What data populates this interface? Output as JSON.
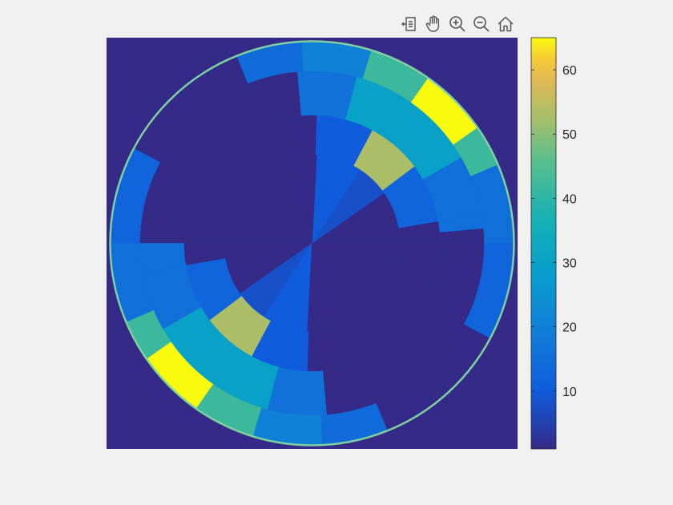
{
  "toolbar": {
    "buttons": [
      {
        "name": "export-button",
        "icon": "export-icon"
      },
      {
        "name": "pan-button",
        "icon": "hand-icon"
      },
      {
        "name": "zoom-in-button",
        "icon": "zoom-in-icon"
      },
      {
        "name": "zoom-out-button",
        "icon": "zoom-out-icon"
      },
      {
        "name": "home-button",
        "icon": "home-icon"
      }
    ]
  },
  "chart_data": {
    "type": "heatmap",
    "description_type": "polar-segment image with colorbar",
    "colormap": "parula",
    "background_value": 1,
    "ring_border_color": "#7fd0a0",
    "colorbar": {
      "min": 1,
      "max": 65,
      "ticks": [
        10,
        20,
        30,
        40,
        50,
        60
      ],
      "tick_labels": [
        "10",
        "20",
        "30",
        "40",
        "50",
        "60"
      ]
    },
    "rings": [
      {
        "ring": 1,
        "segments": [
          {
            "start_deg": 0,
            "end_deg": 35,
            "value": 1
          },
          {
            "start_deg": 35,
            "end_deg": 57,
            "value": 8
          },
          {
            "start_deg": 57,
            "end_deg": 87,
            "value": 10
          },
          {
            "start_deg": 87,
            "end_deg": 180,
            "value": 1
          },
          {
            "start_deg": 180,
            "end_deg": 215,
            "value": 1
          },
          {
            "start_deg": 215,
            "end_deg": 237,
            "value": 8
          },
          {
            "start_deg": 237,
            "end_deg": 267,
            "value": 10
          },
          {
            "start_deg": 267,
            "end_deg": 360,
            "value": 1
          }
        ]
      },
      {
        "ring": 2,
        "segments": [
          {
            "start_deg": 0,
            "end_deg": 10,
            "value": 1
          },
          {
            "start_deg": 10,
            "end_deg": 37,
            "value": 12
          },
          {
            "start_deg": 37,
            "end_deg": 62,
            "value": 53
          },
          {
            "start_deg": 62,
            "end_deg": 88,
            "value": 10
          },
          {
            "start_deg": 88,
            "end_deg": 180,
            "value": 1
          },
          {
            "start_deg": 180,
            "end_deg": 190,
            "value": 1
          },
          {
            "start_deg": 190,
            "end_deg": 217,
            "value": 12
          },
          {
            "start_deg": 217,
            "end_deg": 242,
            "value": 53
          },
          {
            "start_deg": 242,
            "end_deg": 268,
            "value": 10
          },
          {
            "start_deg": 268,
            "end_deg": 360,
            "value": 1
          }
        ]
      },
      {
        "ring": 3,
        "segments": [
          {
            "start_deg": 0,
            "end_deg": 5,
            "value": 1
          },
          {
            "start_deg": 5,
            "end_deg": 10,
            "value": 15
          },
          {
            "start_deg": 10,
            "end_deg": 30,
            "value": 15
          },
          {
            "start_deg": 30,
            "end_deg": 55,
            "value": 30
          },
          {
            "start_deg": 55,
            "end_deg": 75,
            "value": 30
          },
          {
            "start_deg": 75,
            "end_deg": 95,
            "value": 16
          },
          {
            "start_deg": 95,
            "end_deg": 180,
            "value": 1
          },
          {
            "start_deg": 180,
            "end_deg": 190,
            "value": 15
          },
          {
            "start_deg": 190,
            "end_deg": 210,
            "value": 15
          },
          {
            "start_deg": 210,
            "end_deg": 235,
            "value": 30
          },
          {
            "start_deg": 235,
            "end_deg": 255,
            "value": 30
          },
          {
            "start_deg": 255,
            "end_deg": 275,
            "value": 16
          },
          {
            "start_deg": 275,
            "end_deg": 360,
            "value": 1
          }
        ]
      },
      {
        "ring": 4,
        "segments": [
          {
            "start_deg": 0,
            "end_deg": 23,
            "value": 15
          },
          {
            "start_deg": 23,
            "end_deg": 35,
            "value": 42
          },
          {
            "start_deg": 35,
            "end_deg": 55,
            "value": 65
          },
          {
            "start_deg": 55,
            "end_deg": 73,
            "value": 42
          },
          {
            "start_deg": 73,
            "end_deg": 93,
            "value": 20
          },
          {
            "start_deg": 93,
            "end_deg": 112,
            "value": 14
          },
          {
            "start_deg": 112,
            "end_deg": 152,
            "value": 1
          },
          {
            "start_deg": 152,
            "end_deg": 180,
            "value": 12
          },
          {
            "start_deg": 180,
            "end_deg": 203,
            "value": 15
          },
          {
            "start_deg": 203,
            "end_deg": 215,
            "value": 42
          },
          {
            "start_deg": 215,
            "end_deg": 235,
            "value": 65
          },
          {
            "start_deg": 235,
            "end_deg": 253,
            "value": 42
          },
          {
            "start_deg": 253,
            "end_deg": 273,
            "value": 20
          },
          {
            "start_deg": 273,
            "end_deg": 292,
            "value": 14
          },
          {
            "start_deg": 292,
            "end_deg": 332,
            "value": 1
          },
          {
            "start_deg": 332,
            "end_deg": 360,
            "value": 12
          }
        ]
      }
    ]
  }
}
